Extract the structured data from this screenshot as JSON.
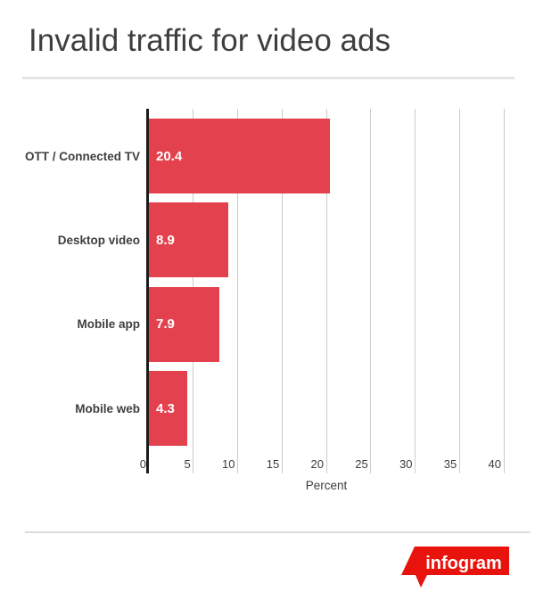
{
  "chart_data": {
    "type": "bar",
    "orientation": "horizontal",
    "title": "Invalid traffic for video ads",
    "categories": [
      "OTT / Connected TV",
      "Desktop video",
      "Mobile app",
      "Mobile web"
    ],
    "values": [
      20.4,
      8.9,
      7.9,
      4.3
    ],
    "value_labels": [
      "20.4",
      "8.9",
      "7.9",
      "4.3"
    ],
    "xlabel": "Percent",
    "xticks": [
      0,
      5,
      10,
      15,
      20,
      25,
      30,
      35,
      40
    ],
    "xlim": [
      0,
      40
    ],
    "grid": true,
    "legend": "none",
    "bar_color": "#e4414e",
    "category_label_color": "#3f3f3f",
    "value_label_color": "#ffffff",
    "axis_color": "#1b1b1b",
    "gridline_color": "#cccccc"
  },
  "footer": {
    "logo_text": "infogram",
    "logo_color": "#e8130c"
  }
}
